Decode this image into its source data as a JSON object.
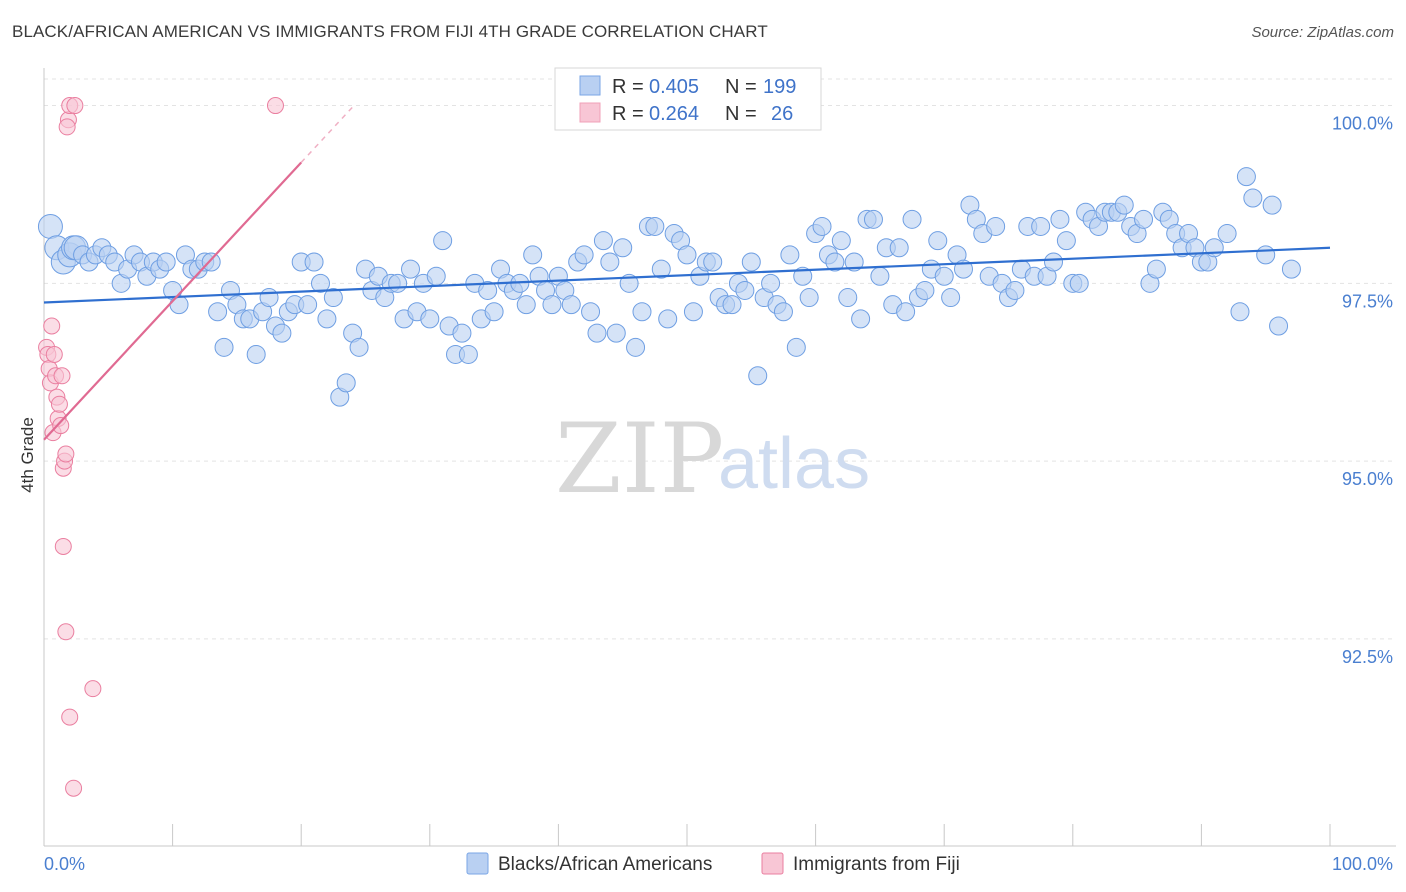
{
  "title": "BLACK/AFRICAN AMERICAN VS IMMIGRANTS FROM FIJI 4TH GRADE CORRELATION CHART",
  "source": "Source: ZipAtlas.com",
  "watermark": {
    "zip": "ZIP",
    "atlas": "atlas"
  },
  "legend_box": [
    {
      "r_label": "R =",
      "r_value": "0.405",
      "n_label": "N =",
      "n_value": "199",
      "color": "#7aa6e6"
    },
    {
      "r_label": "R =",
      "r_value": "0.264",
      "n_label": "N =",
      "n_value": "26",
      "color": "#f0a0b8"
    }
  ],
  "chart_data": {
    "type": "scatter",
    "title": "BLACK/AFRICAN AMERICAN VS IMMIGRANTS FROM FIJI 4TH GRADE CORRELATION CHART",
    "xlabel": "",
    "ylabel": "4th Grade",
    "xlim": [
      0,
      100
    ],
    "ylim": [
      89.7,
      100.5
    ],
    "x_tick_labels": [
      "0.0%",
      "100.0%"
    ],
    "y_ticks": [
      {
        "value": 100.0,
        "label": "100.0%"
      },
      {
        "value": 97.5,
        "label": "97.5%"
      },
      {
        "value": 95.0,
        "label": "95.0%"
      },
      {
        "value": 92.5,
        "label": "92.5%"
      }
    ],
    "grid": true,
    "legend_position": "bottom",
    "series": [
      {
        "name": "Blacks/African Americans",
        "color": "#6f9fe3",
        "fill": "#b9d0f2",
        "trend": {
          "x": [
            0,
            100
          ],
          "y": [
            97.23,
            98.0
          ]
        },
        "points": [
          [
            0.5,
            98.3
          ],
          [
            1,
            98.0
          ],
          [
            1.5,
            97.8
          ],
          [
            2,
            97.9
          ],
          [
            2.3,
            98.0
          ],
          [
            2.5,
            98.0
          ],
          [
            3,
            97.9
          ],
          [
            3.5,
            97.8
          ],
          [
            4,
            97.9
          ],
          [
            4.5,
            98.0
          ],
          [
            5,
            97.9
          ],
          [
            5.5,
            97.8
          ],
          [
            6,
            97.5
          ],
          [
            6.5,
            97.7
          ],
          [
            7,
            97.9
          ],
          [
            7.5,
            97.8
          ],
          [
            8,
            97.6
          ],
          [
            8.5,
            97.8
          ],
          [
            9,
            97.7
          ],
          [
            9.5,
            97.8
          ],
          [
            10,
            97.4
          ],
          [
            10.5,
            97.2
          ],
          [
            11,
            97.9
          ],
          [
            11.5,
            97.7
          ],
          [
            12,
            97.7
          ],
          [
            12.5,
            97.8
          ],
          [
            13,
            97.8
          ],
          [
            13.5,
            97.1
          ],
          [
            14,
            96.6
          ],
          [
            14.5,
            97.4
          ],
          [
            15,
            97.2
          ],
          [
            15.5,
            97.0
          ],
          [
            16,
            97.0
          ],
          [
            16.5,
            96.5
          ],
          [
            17,
            97.1
          ],
          [
            17.5,
            97.3
          ],
          [
            18,
            96.9
          ],
          [
            18.5,
            96.8
          ],
          [
            19,
            97.1
          ],
          [
            19.5,
            97.2
          ],
          [
            20,
            97.8
          ],
          [
            20.5,
            97.2
          ],
          [
            21,
            97.8
          ],
          [
            21.5,
            97.5
          ],
          [
            22,
            97.0
          ],
          [
            22.5,
            97.3
          ],
          [
            23,
            95.9
          ],
          [
            23.5,
            96.1
          ],
          [
            24,
            96.8
          ],
          [
            24.5,
            96.6
          ],
          [
            25,
            97.7
          ],
          [
            25.5,
            97.4
          ],
          [
            26,
            97.6
          ],
          [
            26.5,
            97.3
          ],
          [
            27,
            97.5
          ],
          [
            27.5,
            97.5
          ],
          [
            28,
            97.0
          ],
          [
            28.5,
            97.7
          ],
          [
            29,
            97.1
          ],
          [
            29.5,
            97.5
          ],
          [
            30,
            97.0
          ],
          [
            30.5,
            97.6
          ],
          [
            31,
            98.1
          ],
          [
            31.5,
            96.9
          ],
          [
            32,
            96.5
          ],
          [
            32.5,
            96.8
          ],
          [
            33,
            96.5
          ],
          [
            33.5,
            97.5
          ],
          [
            34,
            97.0
          ],
          [
            34.5,
            97.4
          ],
          [
            35,
            97.1
          ],
          [
            35.5,
            97.7
          ],
          [
            36,
            97.5
          ],
          [
            36.5,
            97.4
          ],
          [
            37,
            97.5
          ],
          [
            37.5,
            97.2
          ],
          [
            38,
            97.9
          ],
          [
            38.5,
            97.6
          ],
          [
            39,
            97.4
          ],
          [
            39.5,
            97.2
          ],
          [
            40,
            97.6
          ],
          [
            40.5,
            97.4
          ],
          [
            41,
            97.2
          ],
          [
            41.5,
            97.8
          ],
          [
            42,
            97.9
          ],
          [
            42.5,
            97.1
          ],
          [
            43,
            96.8
          ],
          [
            43.5,
            98.1
          ],
          [
            44,
            97.8
          ],
          [
            44.5,
            96.8
          ],
          [
            45,
            98.0
          ],
          [
            45.5,
            97.5
          ],
          [
            46,
            96.6
          ],
          [
            46.5,
            97.1
          ],
          [
            47,
            98.3
          ],
          [
            47.5,
            98.3
          ],
          [
            48,
            97.7
          ],
          [
            48.5,
            97.0
          ],
          [
            49,
            98.2
          ],
          [
            49.5,
            98.1
          ],
          [
            50,
            97.9
          ],
          [
            50.5,
            97.1
          ],
          [
            51,
            97.6
          ],
          [
            51.5,
            97.8
          ],
          [
            52,
            97.8
          ],
          [
            52.5,
            97.3
          ],
          [
            53,
            97.2
          ],
          [
            53.5,
            97.2
          ],
          [
            54,
            97.5
          ],
          [
            54.5,
            97.4
          ],
          [
            55,
            97.8
          ],
          [
            55.5,
            96.2
          ],
          [
            56,
            97.3
          ],
          [
            56.5,
            97.5
          ],
          [
            57,
            97.2
          ],
          [
            57.5,
            97.1
          ],
          [
            58,
            97.9
          ],
          [
            58.5,
            96.6
          ],
          [
            59,
            97.6
          ],
          [
            59.5,
            97.3
          ],
          [
            60,
            98.2
          ],
          [
            60.5,
            98.3
          ],
          [
            61,
            97.9
          ],
          [
            61.5,
            97.8
          ],
          [
            62,
            98.1
          ],
          [
            62.5,
            97.3
          ],
          [
            63,
            97.8
          ],
          [
            63.5,
            97.0
          ],
          [
            64,
            98.4
          ],
          [
            64.5,
            98.4
          ],
          [
            65,
            97.6
          ],
          [
            65.5,
            98.0
          ],
          [
            66,
            97.2
          ],
          [
            66.5,
            98.0
          ],
          [
            67,
            97.1
          ],
          [
            67.5,
            98.4
          ],
          [
            68,
            97.3
          ],
          [
            68.5,
            97.4
          ],
          [
            69,
            97.7
          ],
          [
            69.5,
            98.1
          ],
          [
            70,
            97.6
          ],
          [
            70.5,
            97.3
          ],
          [
            71,
            97.9
          ],
          [
            71.5,
            97.7
          ],
          [
            72,
            98.6
          ],
          [
            72.5,
            98.4
          ],
          [
            73,
            98.2
          ],
          [
            73.5,
            97.6
          ],
          [
            74,
            98.3
          ],
          [
            74.5,
            97.5
          ],
          [
            75,
            97.3
          ],
          [
            75.5,
            97.4
          ],
          [
            76,
            97.7
          ],
          [
            76.5,
            98.3
          ],
          [
            77,
            97.6
          ],
          [
            77.5,
            98.3
          ],
          [
            78,
            97.6
          ],
          [
            78.5,
            97.8
          ],
          [
            79,
            98.4
          ],
          [
            79.5,
            98.1
          ],
          [
            80,
            97.5
          ],
          [
            80.5,
            97.5
          ],
          [
            81,
            98.5
          ],
          [
            81.5,
            98.4
          ],
          [
            82,
            98.3
          ],
          [
            82.5,
            98.5
          ],
          [
            83,
            98.5
          ],
          [
            83.5,
            98.5
          ],
          [
            84,
            98.6
          ],
          [
            84.5,
            98.3
          ],
          [
            85,
            98.2
          ],
          [
            85.5,
            98.4
          ],
          [
            86,
            97.5
          ],
          [
            86.5,
            97.7
          ],
          [
            87,
            98.5
          ],
          [
            87.5,
            98.4
          ],
          [
            88,
            98.2
          ],
          [
            88.5,
            98.0
          ],
          [
            89,
            98.2
          ],
          [
            89.5,
            98.0
          ],
          [
            90,
            97.8
          ],
          [
            90.5,
            97.8
          ],
          [
            91,
            98.0
          ],
          [
            92,
            98.2
          ],
          [
            93,
            97.1
          ],
          [
            93.5,
            99.0
          ],
          [
            94,
            98.7
          ],
          [
            95,
            97.9
          ],
          [
            95.5,
            98.6
          ],
          [
            96,
            96.9
          ],
          [
            97,
            97.7
          ]
        ]
      },
      {
        "name": "Immigrants from Fiji",
        "color": "#ea7fa0",
        "fill": "#f8c6d5",
        "trend": {
          "x": [
            0,
            20
          ],
          "y": [
            95.3,
            99.2
          ]
        },
        "points": [
          [
            0.2,
            96.6
          ],
          [
            0.3,
            96.5
          ],
          [
            0.4,
            96.3
          ],
          [
            0.5,
            96.1
          ],
          [
            0.6,
            96.9
          ],
          [
            0.7,
            95.4
          ],
          [
            0.8,
            96.5
          ],
          [
            0.9,
            96.2
          ],
          [
            1.0,
            95.9
          ],
          [
            1.1,
            95.6
          ],
          [
            1.2,
            95.8
          ],
          [
            1.3,
            95.5
          ],
          [
            1.4,
            96.2
          ],
          [
            1.5,
            94.9
          ],
          [
            1.6,
            95.0
          ],
          [
            1.7,
            95.1
          ],
          [
            1.5,
            93.8
          ],
          [
            1.7,
            92.6
          ],
          [
            2.0,
            91.4
          ],
          [
            2.3,
            90.4
          ],
          [
            1.9,
            99.8
          ],
          [
            2.0,
            100.0
          ],
          [
            2.4,
            100.0
          ],
          [
            1.8,
            99.7
          ],
          [
            3.8,
            91.8
          ],
          [
            18.0,
            100.0
          ]
        ]
      }
    ]
  },
  "bottom_legend": [
    {
      "label": "Blacks/African Americans",
      "color": "#7aa6e6",
      "fill": "#b9d0f2"
    },
    {
      "label": "Immigrants from Fiji",
      "color": "#ea7fa0",
      "fill": "#f8c6d5"
    }
  ]
}
